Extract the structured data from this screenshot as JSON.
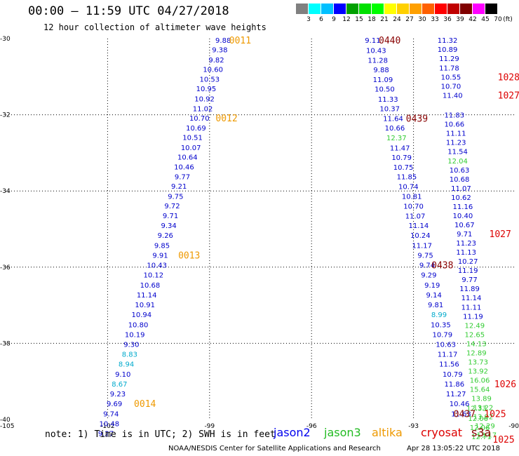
{
  "header": {
    "title": "00:00 – 11:59 UTC 04/27/2018",
    "subtitle": "12 hour collection of altimeter wave heights"
  },
  "color_scale": {
    "unit_label": "(ft)",
    "labels": [
      "3",
      "6",
      "9",
      "12",
      "15",
      "18",
      "21",
      "24",
      "27",
      "30",
      "33",
      "36",
      "39",
      "42",
      "45",
      "70"
    ],
    "colors": [
      "#808080",
      "#00ffff",
      "#00c0ff",
      "#0000ff",
      "#00a000",
      "#00e000",
      "#00ff00",
      "#ffff00",
      "#ffd000",
      "#ffa000",
      "#ff6000",
      "#ff0000",
      "#c00000",
      "#800000",
      "#ff00ff",
      "#000000"
    ]
  },
  "chart_data": {
    "type": "scatter",
    "xlim": [
      -105,
      -90
    ],
    "ylim": [
      -40,
      -30
    ],
    "x_ticks": [
      "-105",
      "-102",
      "-99",
      "-96",
      "-93",
      "-90"
    ],
    "y_ticks": [
      "-30",
      "-32",
      "-34",
      "-36",
      "-38",
      "-40"
    ],
    "value_colors": {
      "blue": "#0000cc",
      "cyan": "#00aacc",
      "green": "#33cc33",
      "orange": "#ee9900",
      "red": "#dd0000",
      "darkred": "#880000"
    },
    "series": [
      {
        "name": "jason2",
        "values": [
          {
            "x": -98.6,
            "y": -30.04,
            "v": "9.88",
            "c": "blue"
          },
          {
            "x": -98.7,
            "y": -30.29,
            "v": "9.38",
            "c": "blue"
          },
          {
            "x": -98.8,
            "y": -30.55,
            "v": "9.82",
            "c": "blue"
          },
          {
            "x": -98.9,
            "y": -30.8,
            "v": "10.60",
            "c": "blue"
          },
          {
            "x": -99.0,
            "y": -31.06,
            "v": "10.53",
            "c": "blue"
          },
          {
            "x": -99.1,
            "y": -31.31,
            "v": "10.95",
            "c": "blue"
          },
          {
            "x": -99.15,
            "y": -31.57,
            "v": "10.92",
            "c": "blue"
          },
          {
            "x": -99.2,
            "y": -31.83,
            "v": "11.02",
            "c": "blue"
          },
          {
            "x": -99.3,
            "y": -32.08,
            "v": "10.70",
            "c": "blue"
          },
          {
            "x": -99.4,
            "y": -32.34,
            "v": "10.69",
            "c": "blue"
          },
          {
            "x": -99.5,
            "y": -32.59,
            "v": "10.51",
            "c": "blue"
          },
          {
            "x": -99.55,
            "y": -32.85,
            "v": "10.07",
            "c": "blue"
          },
          {
            "x": -99.65,
            "y": -33.1,
            "v": "10.64",
            "c": "blue"
          },
          {
            "x": -99.75,
            "y": -33.36,
            "v": "10.46",
            "c": "blue"
          },
          {
            "x": -99.8,
            "y": -33.62,
            "v": "9.77",
            "c": "blue"
          },
          {
            "x": -99.9,
            "y": -33.87,
            "v": "9.21",
            "c": "blue"
          },
          {
            "x": -100.0,
            "y": -34.13,
            "v": "9.75",
            "c": "blue"
          },
          {
            "x": -100.1,
            "y": -34.38,
            "v": "9.72",
            "c": "blue"
          },
          {
            "x": -100.15,
            "y": -34.64,
            "v": "9.71",
            "c": "blue"
          },
          {
            "x": -100.2,
            "y": -34.9,
            "v": "9.34",
            "c": "blue"
          },
          {
            "x": -100.3,
            "y": -35.16,
            "v": "9.26",
            "c": "blue"
          },
          {
            "x": -100.4,
            "y": -35.42,
            "v": "9.85",
            "c": "blue"
          },
          {
            "x": -100.45,
            "y": -35.68,
            "v": "9.91",
            "c": "blue"
          },
          {
            "x": -100.55,
            "y": -35.94,
            "v": "10.43",
            "c": "blue"
          },
          {
            "x": -100.65,
            "y": -36.2,
            "v": "10.12",
            "c": "blue"
          },
          {
            "x": -100.75,
            "y": -36.46,
            "v": "10.68",
            "c": "blue"
          },
          {
            "x": -100.85,
            "y": -36.72,
            "v": "11.14",
            "c": "blue"
          },
          {
            "x": -100.9,
            "y": -36.98,
            "v": "10.91",
            "c": "blue"
          },
          {
            "x": -101.0,
            "y": -37.24,
            "v": "10.94",
            "c": "blue"
          },
          {
            "x": -101.1,
            "y": -37.5,
            "v": "10.80",
            "c": "blue"
          },
          {
            "x": -101.2,
            "y": -37.76,
            "v": "10.19",
            "c": "blue"
          },
          {
            "x": -101.3,
            "y": -38.02,
            "v": "9.30",
            "c": "blue"
          },
          {
            "x": -101.35,
            "y": -38.28,
            "v": "8.83",
            "c": "cyan"
          },
          {
            "x": -101.45,
            "y": -38.54,
            "v": "8.94",
            "c": "cyan"
          },
          {
            "x": -101.55,
            "y": -38.8,
            "v": "9.10",
            "c": "blue"
          },
          {
            "x": -101.65,
            "y": -39.06,
            "v": "8.67",
            "c": "cyan"
          },
          {
            "x": -101.7,
            "y": -39.32,
            "v": "9.23",
            "c": "blue"
          },
          {
            "x": -101.8,
            "y": -39.58,
            "v": "9.69",
            "c": "blue"
          },
          {
            "x": -101.9,
            "y": -39.84,
            "v": "9.74",
            "c": "blue"
          },
          {
            "x": -101.95,
            "y": -40.1,
            "v": "10.48",
            "c": "blue"
          },
          {
            "x": -102.05,
            "y": -40.36,
            "v": "9.27",
            "c": "blue"
          },
          {
            "x": -94.2,
            "y": -30.04,
            "v": "9.11",
            "c": "blue"
          },
          {
            "x": -94.1,
            "y": -30.3,
            "v": "10.43",
            "c": "blue"
          },
          {
            "x": -94.05,
            "y": -30.56,
            "v": "11.28",
            "c": "blue"
          },
          {
            "x": -93.95,
            "y": -30.81,
            "v": "9.88",
            "c": "blue"
          },
          {
            "x": -93.9,
            "y": -31.07,
            "v": "11.09",
            "c": "blue"
          },
          {
            "x": -93.85,
            "y": -31.32,
            "v": "10.50",
            "c": "blue"
          },
          {
            "x": -93.75,
            "y": -31.58,
            "v": "11.33",
            "c": "blue"
          },
          {
            "x": -93.7,
            "y": -31.83,
            "v": "10.37",
            "c": "blue"
          },
          {
            "x": -93.6,
            "y": -32.09,
            "v": "11.64",
            "c": "blue"
          },
          {
            "x": -93.55,
            "y": -32.34,
            "v": "10.66",
            "c": "blue"
          },
          {
            "x": -93.5,
            "y": -32.6,
            "v": "12.37",
            "c": "green"
          },
          {
            "x": -93.4,
            "y": -32.86,
            "v": "11.47",
            "c": "blue"
          },
          {
            "x": -93.35,
            "y": -33.11,
            "v": "10.79",
            "c": "blue"
          },
          {
            "x": -93.3,
            "y": -33.37,
            "v": "10.75",
            "c": "blue"
          },
          {
            "x": -93.2,
            "y": -33.62,
            "v": "11.85",
            "c": "blue"
          },
          {
            "x": -93.15,
            "y": -33.88,
            "v": "10.74",
            "c": "blue"
          },
          {
            "x": -93.05,
            "y": -34.13,
            "v": "10.81",
            "c": "blue"
          },
          {
            "x": -93.0,
            "y": -34.39,
            "v": "10.70",
            "c": "blue"
          },
          {
            "x": -92.95,
            "y": -34.65,
            "v": "11.07",
            "c": "blue"
          },
          {
            "x": -92.85,
            "y": -34.9,
            "v": "11.14",
            "c": "blue"
          },
          {
            "x": -92.8,
            "y": -35.16,
            "v": "10.24",
            "c": "blue"
          },
          {
            "x": -92.75,
            "y": -35.42,
            "v": "11.17",
            "c": "blue"
          },
          {
            "x": -92.65,
            "y": -35.68,
            "v": "9.75",
            "c": "blue"
          },
          {
            "x": -92.6,
            "y": -35.94,
            "v": "9.74",
            "c": "blue"
          },
          {
            "x": -92.55,
            "y": -36.2,
            "v": "9.29",
            "c": "blue"
          },
          {
            "x": -92.45,
            "y": -36.46,
            "v": "9.19",
            "c": "blue"
          },
          {
            "x": -92.4,
            "y": -36.72,
            "v": "9.14",
            "c": "blue"
          },
          {
            "x": -92.35,
            "y": -36.98,
            "v": "9.81",
            "c": "blue"
          },
          {
            "x": -92.25,
            "y": -37.24,
            "v": "8.99",
            "c": "cyan"
          },
          {
            "x": -92.2,
            "y": -37.5,
            "v": "10.35",
            "c": "blue"
          },
          {
            "x": -92.15,
            "y": -37.76,
            "v": "10.79",
            "c": "blue"
          },
          {
            "x": -92.05,
            "y": -38.02,
            "v": "10.63",
            "c": "blue"
          },
          {
            "x": -92.0,
            "y": -38.28,
            "v": "11.17",
            "c": "blue"
          },
          {
            "x": -91.95,
            "y": -38.54,
            "v": "11.56",
            "c": "blue"
          },
          {
            "x": -91.85,
            "y": -38.8,
            "v": "10.79",
            "c": "blue"
          },
          {
            "x": -91.8,
            "y": -39.06,
            "v": "11.86",
            "c": "blue"
          },
          {
            "x": -91.75,
            "y": -39.32,
            "v": "11.27",
            "c": "blue"
          },
          {
            "x": -91.65,
            "y": -39.58,
            "v": "10.46",
            "c": "blue"
          },
          {
            "x": -91.6,
            "y": -39.84,
            "v": "11.63",
            "c": "blue"
          },
          {
            "x": -92.0,
            "y": -30.04,
            "v": "11.32",
            "c": "blue"
          },
          {
            "x": -92.0,
            "y": -30.28,
            "v": "10.89",
            "c": "blue"
          },
          {
            "x": -91.95,
            "y": -30.52,
            "v": "11.29",
            "c": "blue"
          },
          {
            "x": -91.95,
            "y": -30.76,
            "v": "11.78",
            "c": "blue"
          },
          {
            "x": -91.9,
            "y": -31.0,
            "v": "10.55",
            "c": "blue"
          },
          {
            "x": -91.9,
            "y": -31.24,
            "v": "10.70",
            "c": "blue"
          },
          {
            "x": -91.85,
            "y": -31.48,
            "v": "11.40",
            "c": "blue"
          },
          {
            "x": -91.8,
            "y": -32.0,
            "v": "11.83",
            "c": "blue"
          },
          {
            "x": -91.8,
            "y": -32.24,
            "v": "10.66",
            "c": "blue"
          },
          {
            "x": -91.75,
            "y": -32.48,
            "v": "11.11",
            "c": "blue"
          },
          {
            "x": -91.75,
            "y": -32.72,
            "v": "11.23",
            "c": "blue"
          },
          {
            "x": -91.7,
            "y": -32.96,
            "v": "11.54",
            "c": "blue"
          },
          {
            "x": -91.7,
            "y": -33.2,
            "v": "12.04",
            "c": "green"
          },
          {
            "x": -91.65,
            "y": -33.44,
            "v": "10.63",
            "c": "blue"
          },
          {
            "x": -91.65,
            "y": -33.68,
            "v": "10.68",
            "c": "blue"
          },
          {
            "x": -91.6,
            "y": -33.92,
            "v": "11.07",
            "c": "blue"
          },
          {
            "x": -91.6,
            "y": -34.16,
            "v": "10.62",
            "c": "blue"
          },
          {
            "x": -91.55,
            "y": -34.4,
            "v": "11.16",
            "c": "blue"
          },
          {
            "x": -91.55,
            "y": -34.64,
            "v": "10.40",
            "c": "blue"
          },
          {
            "x": -91.5,
            "y": -34.88,
            "v": "10.67",
            "c": "blue"
          },
          {
            "x": -91.5,
            "y": -35.12,
            "v": "9.71",
            "c": "blue"
          },
          {
            "x": -91.45,
            "y": -35.36,
            "v": "11.23",
            "c": "blue"
          },
          {
            "x": -91.45,
            "y": -35.6,
            "v": "11.13",
            "c": "blue"
          },
          {
            "x": -91.4,
            "y": -35.84,
            "v": "10.27",
            "c": "blue"
          },
          {
            "x": -91.4,
            "y": -36.08,
            "v": "11.19",
            "c": "blue"
          },
          {
            "x": -91.35,
            "y": -36.32,
            "v": "9.77",
            "c": "blue"
          },
          {
            "x": -91.35,
            "y": -36.56,
            "v": "11.89",
            "c": "blue"
          },
          {
            "x": -91.3,
            "y": -36.8,
            "v": "11.14",
            "c": "blue"
          },
          {
            "x": -91.3,
            "y": -37.04,
            "v": "11.11",
            "c": "blue"
          },
          {
            "x": -91.25,
            "y": -37.28,
            "v": "11.19",
            "c": "blue"
          }
        ]
      },
      {
        "name": "jason3",
        "values": [
          {
            "x": -91.2,
            "y": -37.52,
            "v": "12.49",
            "c": "green"
          },
          {
            "x": -91.2,
            "y": -37.76,
            "v": "12.65",
            "c": "green"
          },
          {
            "x": -91.15,
            "y": -38.0,
            "v": "14.13",
            "c": "green"
          },
          {
            "x": -91.15,
            "y": -38.24,
            "v": "12.89",
            "c": "green"
          },
          {
            "x": -91.1,
            "y": -38.48,
            "v": "13.73",
            "c": "green"
          },
          {
            "x": -91.1,
            "y": -38.72,
            "v": "13.92",
            "c": "green"
          },
          {
            "x": -91.05,
            "y": -38.96,
            "v": "16.06",
            "c": "green"
          },
          {
            "x": -91.05,
            "y": -39.2,
            "v": "15.64",
            "c": "green"
          },
          {
            "x": -91.0,
            "y": -39.44,
            "v": "13.89",
            "c": "green"
          },
          {
            "x": -91.15,
            "y": -39.7,
            "v": "12.33",
            "c": "green"
          },
          {
            "x": -90.95,
            "y": -39.68,
            "v": "13.22",
            "c": "green"
          },
          {
            "x": -91.1,
            "y": -39.96,
            "v": "12.06",
            "c": "green"
          },
          {
            "x": -90.95,
            "y": -39.92,
            "v": "13.92",
            "c": "green"
          },
          {
            "x": -91.05,
            "y": -40.2,
            "v": "12.06",
            "c": "green"
          },
          {
            "x": -90.9,
            "y": -40.16,
            "v": "12.29",
            "c": "green"
          },
          {
            "x": -91.0,
            "y": -40.44,
            "v": "12.71",
            "c": "green"
          },
          {
            "x": -90.85,
            "y": -40.4,
            "v": "13.17",
            "c": "green"
          }
        ]
      }
    ],
    "time_labels": [
      {
        "x": -98.1,
        "y": -30.04,
        "v": "0011",
        "c": "orange"
      },
      {
        "x": -98.5,
        "y": -32.08,
        "v": "0012",
        "c": "orange"
      },
      {
        "x": -99.6,
        "y": -35.68,
        "v": "0013",
        "c": "orange"
      },
      {
        "x": -100.9,
        "y": -39.58,
        "v": "0014",
        "c": "orange"
      },
      {
        "x": -93.7,
        "y": -30.04,
        "v": "0440",
        "c": "darkred"
      },
      {
        "x": -92.9,
        "y": -32.09,
        "v": "0439",
        "c": "darkred"
      },
      {
        "x": -92.15,
        "y": -35.94,
        "v": "0438",
        "c": "darkred"
      },
      {
        "x": -91.5,
        "y": -39.84,
        "v": "0437",
        "c": "darkred"
      },
      {
        "x": -90.2,
        "y": -31.0,
        "v": "1028",
        "c": "red"
      },
      {
        "x": -90.2,
        "y": -31.48,
        "v": "1027",
        "c": "red"
      },
      {
        "x": -90.45,
        "y": -35.12,
        "v": "1027",
        "c": "red"
      },
      {
        "x": -90.3,
        "y": -39.06,
        "v": "1026",
        "c": "red"
      },
      {
        "x": -90.6,
        "y": -39.84,
        "v": "1025",
        "c": "red"
      },
      {
        "x": -90.35,
        "y": -40.52,
        "v": "1025",
        "c": "red"
      }
    ]
  },
  "footer": {
    "note": "note: 1) Time is in UTC; 2) SWH is in feet",
    "legend": [
      {
        "name": "jason2",
        "color": "#0000ee"
      },
      {
        "name": "jason3",
        "color": "#22bb22"
      },
      {
        "name": "altika",
        "color": "#ee9900"
      },
      {
        "name": "cryosat",
        "color": "#dd0000"
      },
      {
        "name": "s3a",
        "color": "#880000"
      }
    ],
    "credit": "NOAA/NESDIS Center for Satellite Applications and Research",
    "timestamp": "Apr 28 13:05:22 UTC 2018"
  }
}
